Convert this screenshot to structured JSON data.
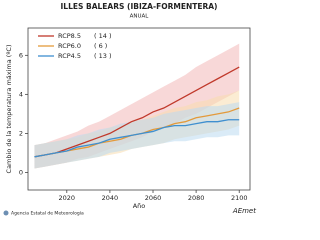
{
  "chart_data": {
    "type": "line_band",
    "title": "ILLES BALEARS (IBIZA-FORMENTERA)",
    "subtitle": "ANUAL",
    "x_label": "Año",
    "y_label": "Cambio de la temperatura máxima (ºC)",
    "x": [
      2005,
      2010,
      2015,
      2020,
      2025,
      2030,
      2035,
      2040,
      2045,
      2050,
      2055,
      2060,
      2065,
      2070,
      2075,
      2080,
      2085,
      2090,
      2095,
      2100
    ],
    "xlim": [
      2002,
      2105
    ],
    "xticks": [
      2020,
      2040,
      2060,
      2080,
      2100
    ],
    "ylim": [
      -0.9,
      7.4
    ],
    "yticks": [
      0,
      2,
      4,
      6
    ],
    "legend_position": "upper left",
    "series": [
      {
        "name": "RCP8.5",
        "count": "( 14 )",
        "color": "#c0392b",
        "band_color": "#f2b8b8",
        "values": [
          0.8,
          0.9,
          1.0,
          1.2,
          1.4,
          1.6,
          1.8,
          2.0,
          2.3,
          2.6,
          2.8,
          3.1,
          3.3,
          3.6,
          3.9,
          4.2,
          4.5,
          4.8,
          5.1,
          5.4
        ],
        "upper": [
          1.4,
          1.5,
          1.7,
          1.9,
          2.1,
          2.4,
          2.6,
          2.9,
          3.2,
          3.5,
          3.8,
          4.1,
          4.4,
          4.7,
          5.0,
          5.4,
          5.7,
          6.0,
          6.3,
          6.6
        ],
        "lower": [
          0.2,
          0.3,
          0.4,
          0.5,
          0.7,
          0.8,
          1.0,
          1.2,
          1.4,
          1.6,
          1.8,
          2.1,
          2.3,
          2.5,
          2.8,
          3.0,
          3.3,
          3.6,
          3.9,
          4.2
        ]
      },
      {
        "name": "RCP6.0",
        "count": "( 6 )",
        "color": "#e39a3b",
        "band_color": "#f7dcae",
        "values": [
          0.8,
          0.9,
          1.0,
          1.1,
          1.2,
          1.3,
          1.5,
          1.6,
          1.7,
          1.9,
          2.0,
          2.2,
          2.3,
          2.5,
          2.6,
          2.8,
          2.9,
          3.0,
          3.1,
          3.3
        ],
        "upper": [
          1.4,
          1.5,
          1.6,
          1.7,
          1.8,
          2.0,
          2.1,
          2.3,
          2.4,
          2.6,
          2.7,
          2.9,
          3.1,
          3.3,
          3.4,
          3.6,
          3.7,
          3.9,
          4.0,
          4.2
        ],
        "lower": [
          0.2,
          0.3,
          0.4,
          0.5,
          0.6,
          0.7,
          0.8,
          0.9,
          1.0,
          1.2,
          1.3,
          1.4,
          1.5,
          1.7,
          1.8,
          1.9,
          2.0,
          2.1,
          2.2,
          2.4
        ]
      },
      {
        "name": "RCP4.5",
        "count": "( 13 )",
        "color": "#3f8fcf",
        "band_color": "#bcdaf0",
        "values": [
          0.8,
          0.9,
          1.0,
          1.1,
          1.3,
          1.4,
          1.5,
          1.7,
          1.8,
          1.9,
          2.0,
          2.1,
          2.3,
          2.4,
          2.4,
          2.5,
          2.6,
          2.6,
          2.7,
          2.7
        ],
        "upper": [
          1.4,
          1.5,
          1.6,
          1.7,
          1.9,
          2.0,
          2.2,
          2.3,
          2.5,
          2.6,
          2.7,
          2.8,
          3.0,
          3.1,
          3.2,
          3.3,
          3.4,
          3.4,
          3.5,
          3.6
        ],
        "lower": [
          0.2,
          0.3,
          0.4,
          0.5,
          0.6,
          0.7,
          0.8,
          1.0,
          1.1,
          1.2,
          1.3,
          1.4,
          1.5,
          1.6,
          1.6,
          1.7,
          1.8,
          1.8,
          1.9,
          1.9
        ]
      }
    ],
    "source": "Agencia Estatal de Meteorología",
    "logo_text": "AEmet"
  }
}
